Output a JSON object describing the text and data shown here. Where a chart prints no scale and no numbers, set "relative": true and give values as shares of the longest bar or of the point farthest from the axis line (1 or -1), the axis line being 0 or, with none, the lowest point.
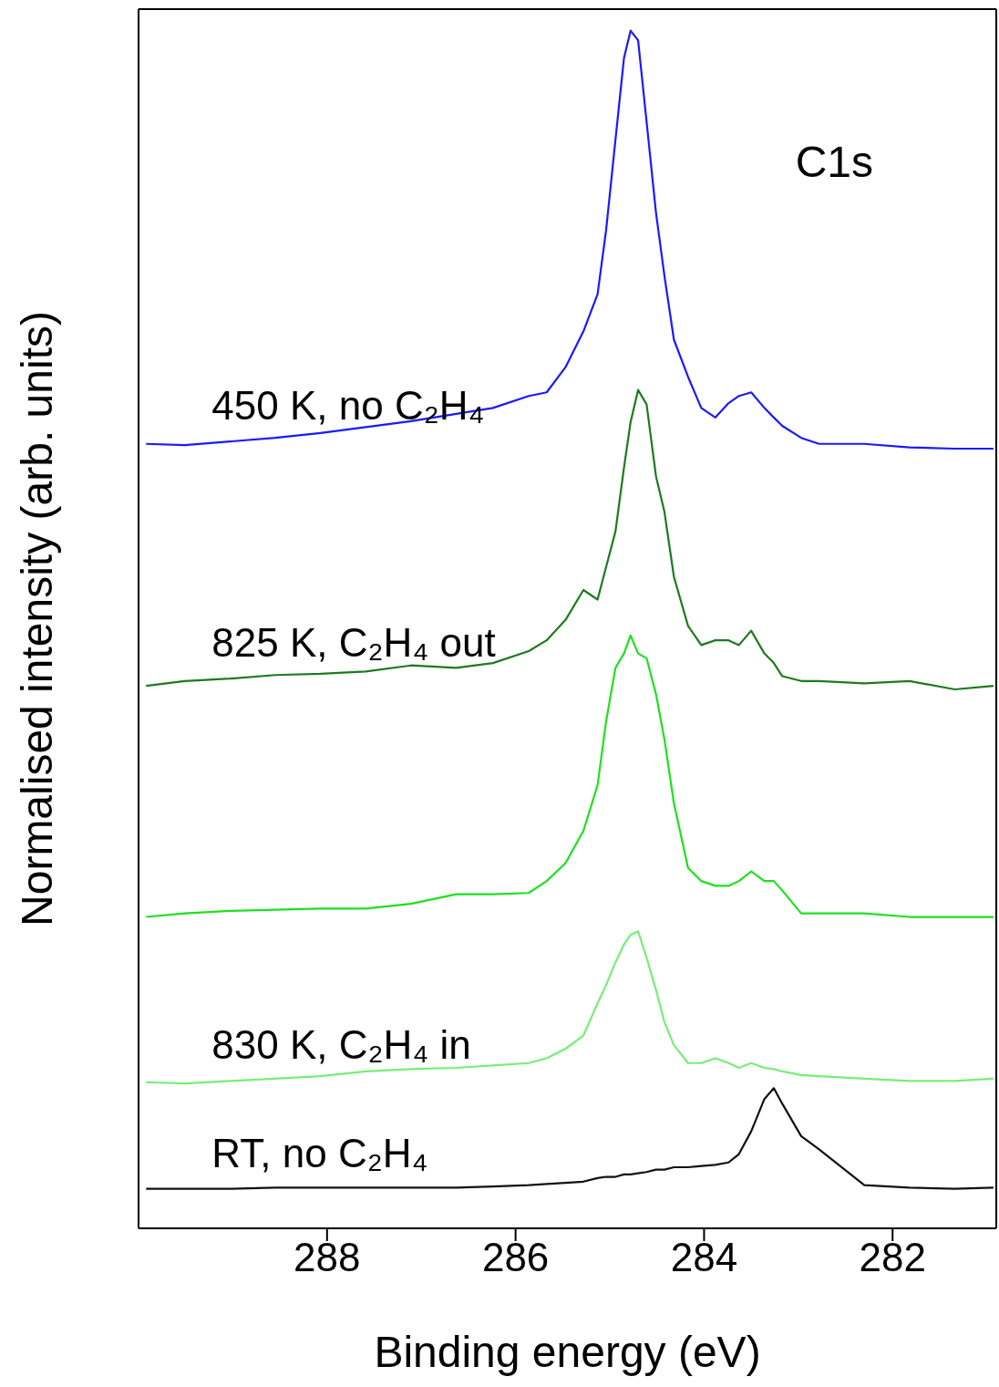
{
  "chart_data": {
    "type": "line",
    "relative": true,
    "xlabel": "Binding energy (eV)",
    "ylabel": "Normalised intensity (arb. units)",
    "xlim": [
      290,
      280.9
    ],
    "xticks": [
      288,
      286,
      284,
      282
    ],
    "annotations": [
      "C1s"
    ],
    "x": [
      289.92,
      289.51,
      289.03,
      288.55,
      288.07,
      287.59,
      287.11,
      286.63,
      286.24,
      285.86,
      285.67,
      285.47,
      285.28,
      285.13,
      285.04,
      284.94,
      284.85,
      284.78,
      284.7,
      284.61,
      284.51,
      284.42,
      284.32,
      284.17,
      284.03,
      283.88,
      283.74,
      283.63,
      283.5,
      283.36,
      283.26,
      283.17,
      282.97,
      282.78,
      282.3,
      281.82,
      281.34,
      280.93
    ],
    "series": [
      {
        "name": "450 K, no C₂H₄",
        "color": "#1a1aff",
        "values": [
          0.655,
          0.654,
          0.657,
          0.66,
          0.664,
          0.669,
          0.674,
          0.68,
          0.685,
          0.695,
          0.698,
          0.719,
          0.749,
          0.78,
          0.833,
          0.909,
          0.977,
          1.0,
          0.992,
          0.924,
          0.848,
          0.795,
          0.742,
          0.711,
          0.685,
          0.677,
          0.689,
          0.695,
          0.698,
          0.685,
          0.677,
          0.67,
          0.66,
          0.655,
          0.655,
          0.652,
          0.651,
          0.651
        ]
      },
      {
        "name": "825 K,  C₂H₄ out",
        "color": "#1e7a1e",
        "values": [
          0.453,
          0.457,
          0.459,
          0.462,
          0.463,
          0.465,
          0.47,
          0.468,
          0.472,
          0.482,
          0.491,
          0.508,
          0.533,
          0.525,
          0.552,
          0.582,
          0.635,
          0.673,
          0.7,
          0.688,
          0.628,
          0.598,
          0.544,
          0.503,
          0.487,
          0.491,
          0.491,
          0.487,
          0.499,
          0.48,
          0.472,
          0.461,
          0.457,
          0.457,
          0.455,
          0.457,
          0.45,
          0.453
        ]
      },
      {
        "color": "#1fe01f",
        "values": [
          0.26,
          0.263,
          0.265,
          0.266,
          0.267,
          0.267,
          0.271,
          0.279,
          0.279,
          0.28,
          0.29,
          0.305,
          0.332,
          0.37,
          0.423,
          0.468,
          0.48,
          0.495,
          0.48,
          0.476,
          0.446,
          0.408,
          0.355,
          0.301,
          0.29,
          0.286,
          0.286,
          0.29,
          0.298,
          0.29,
          0.29,
          0.282,
          0.263,
          0.263,
          0.263,
          0.26,
          0.26,
          0.26
        ]
      },
      {
        "name": "830 K,  C₂H₄ in",
        "color": "#77ee77",
        "values": [
          0.122,
          0.121,
          0.123,
          0.125,
          0.127,
          0.131,
          0.133,
          0.134,
          0.136,
          0.138,
          0.142,
          0.15,
          0.161,
          0.188,
          0.203,
          0.222,
          0.237,
          0.245,
          0.248,
          0.226,
          0.199,
          0.172,
          0.153,
          0.138,
          0.138,
          0.142,
          0.138,
          0.134,
          0.138,
          0.134,
          0.133,
          0.131,
          0.128,
          0.127,
          0.125,
          0.123,
          0.123,
          0.125
        ]
      },
      {
        "name": "RT, no C₂H₄",
        "color": "#111111",
        "values": [
          0.033,
          0.033,
          0.033,
          0.034,
          0.034,
          0.034,
          0.034,
          0.034,
          0.035,
          0.036,
          0.037,
          0.038,
          0.039,
          0.042,
          0.043,
          0.043,
          0.045,
          0.045,
          0.046,
          0.047,
          0.049,
          0.049,
          0.051,
          0.051,
          0.052,
          0.053,
          0.055,
          0.062,
          0.081,
          0.108,
          0.117,
          0.104,
          0.077,
          0.066,
          0.036,
          0.034,
          0.033,
          0.034
        ]
      }
    ]
  }
}
